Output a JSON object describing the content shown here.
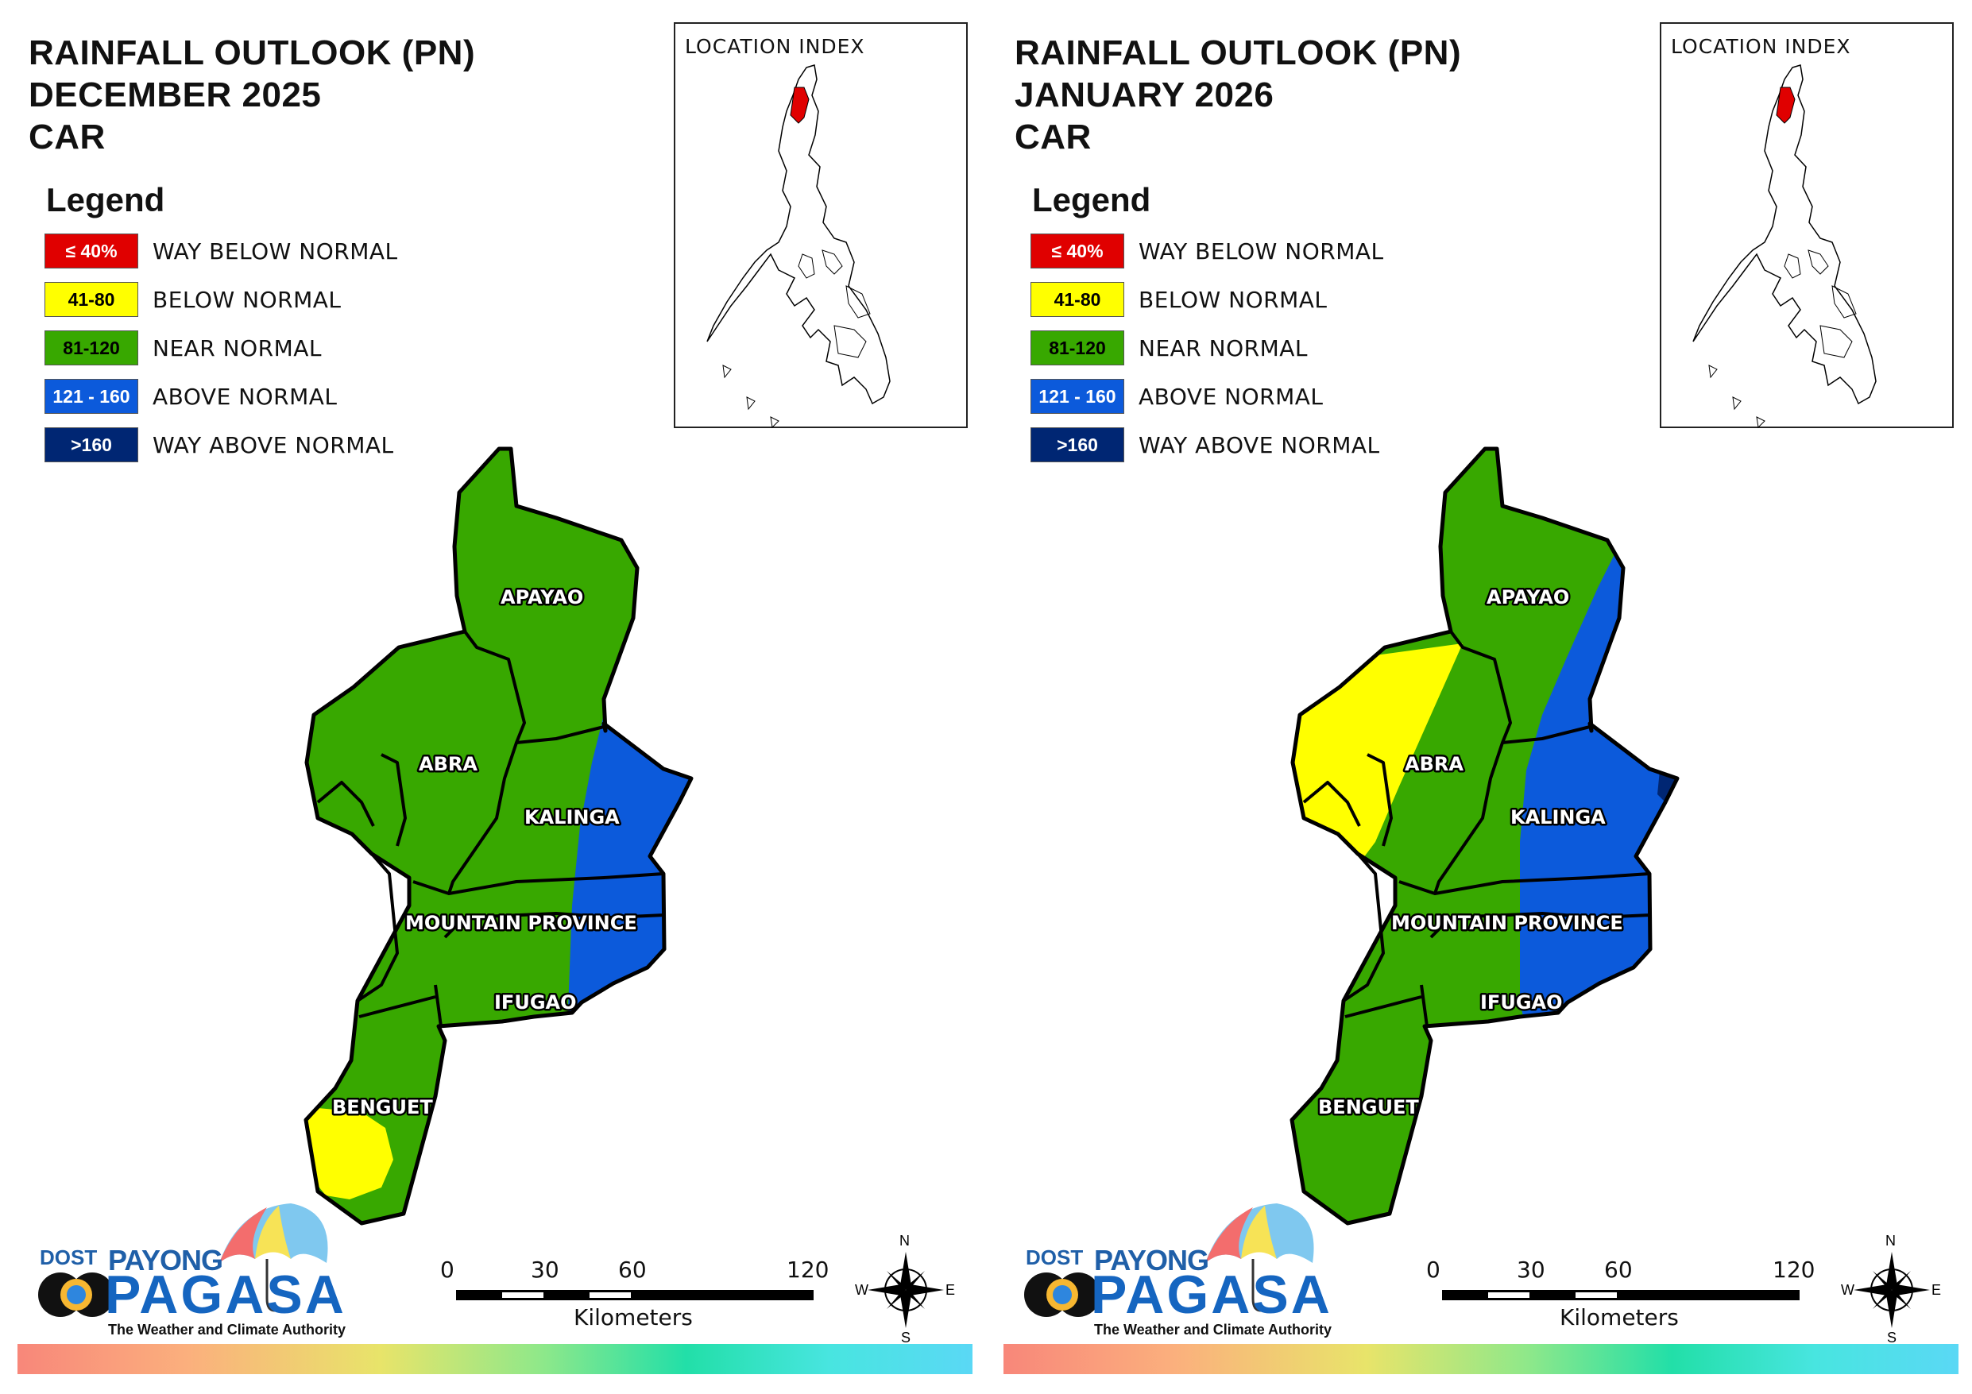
{
  "colors": {
    "way_below": "#e00000",
    "below": "#ffff00",
    "near": "#38a800",
    "above": "#0c5adb",
    "way_above": "#002673"
  },
  "legend": {
    "title": "Legend",
    "items": [
      {
        "range": "≤ 40%",
        "label": "WAY BELOW NORMAL",
        "color": "#e00000",
        "text_color": "#ffffff"
      },
      {
        "range": "41-80",
        "label": "BELOW NORMAL",
        "color": "#ffff00",
        "text_color": "#000000"
      },
      {
        "range": "81-120",
        "label": "NEAR NORMAL",
        "color": "#38a800",
        "text_color": "#000000"
      },
      {
        "range": "121 - 160",
        "label": "ABOVE NORMAL",
        "color": "#0c5adb",
        "text_color": "#ffffff"
      },
      {
        "range": ">160",
        "label": "WAY ABOVE NORMAL",
        "color": "#002673",
        "text_color": "#ffffff"
      }
    ]
  },
  "inset": {
    "title": "LOCATION INDEX"
  },
  "provinces": {
    "apayao": "APAYAO",
    "abra": "ABRA",
    "kalinga": "KALINGA",
    "mountain_province": "MOUNTAIN PROVINCE",
    "ifugao": "IFUGAO",
    "benguet": "BENGUET"
  },
  "scale": {
    "ticks": [
      "0",
      "30",
      "60",
      "120"
    ],
    "units": "Kilometers"
  },
  "compass": {
    "n": "N",
    "e": "E",
    "s": "S",
    "w": "W"
  },
  "logo": {
    "dost": "DOST",
    "payong": "PAYONG",
    "pagasa": "PAGASA",
    "tagline": "The Weather and Climate Authority"
  },
  "panels": [
    {
      "title_line1": "RAINFALL OUTLOOK (PN)",
      "title_line2": "DECEMBER 2025",
      "title_line3": "CAR",
      "zones": [
        {
          "province": "APAYAO",
          "category": "NEAR NORMAL"
        },
        {
          "province": "ABRA",
          "category": "NEAR NORMAL"
        },
        {
          "province": "KALINGA",
          "category": "NEAR NORMAL / ABOVE NORMAL (east)"
        },
        {
          "province": "MOUNTAIN PROVINCE",
          "category": "NEAR NORMAL / ABOVE NORMAL (east)"
        },
        {
          "province": "IFUGAO",
          "category": "NEAR NORMAL / ABOVE NORMAL (east)"
        },
        {
          "province": "BENGUET",
          "category": "NEAR NORMAL / BELOW NORMAL (southwest)"
        }
      ]
    },
    {
      "title_line1": "RAINFALL OUTLOOK (PN)",
      "title_line2": "JANUARY 2026",
      "title_line3": "CAR",
      "zones": [
        {
          "province": "APAYAO",
          "category": "NEAR NORMAL / ABOVE NORMAL (east)"
        },
        {
          "province": "ABRA",
          "category": "NEAR NORMAL / BELOW NORMAL (west)"
        },
        {
          "province": "KALINGA",
          "category": "ABOVE NORMAL / WAY ABOVE NORMAL (east tip)"
        },
        {
          "province": "MOUNTAIN PROVINCE",
          "category": "NEAR NORMAL / ABOVE NORMAL (east)"
        },
        {
          "province": "IFUGAO",
          "category": "NEAR NORMAL / ABOVE NORMAL (east)"
        },
        {
          "province": "BENGUET",
          "category": "NEAR NORMAL"
        }
      ]
    }
  ]
}
